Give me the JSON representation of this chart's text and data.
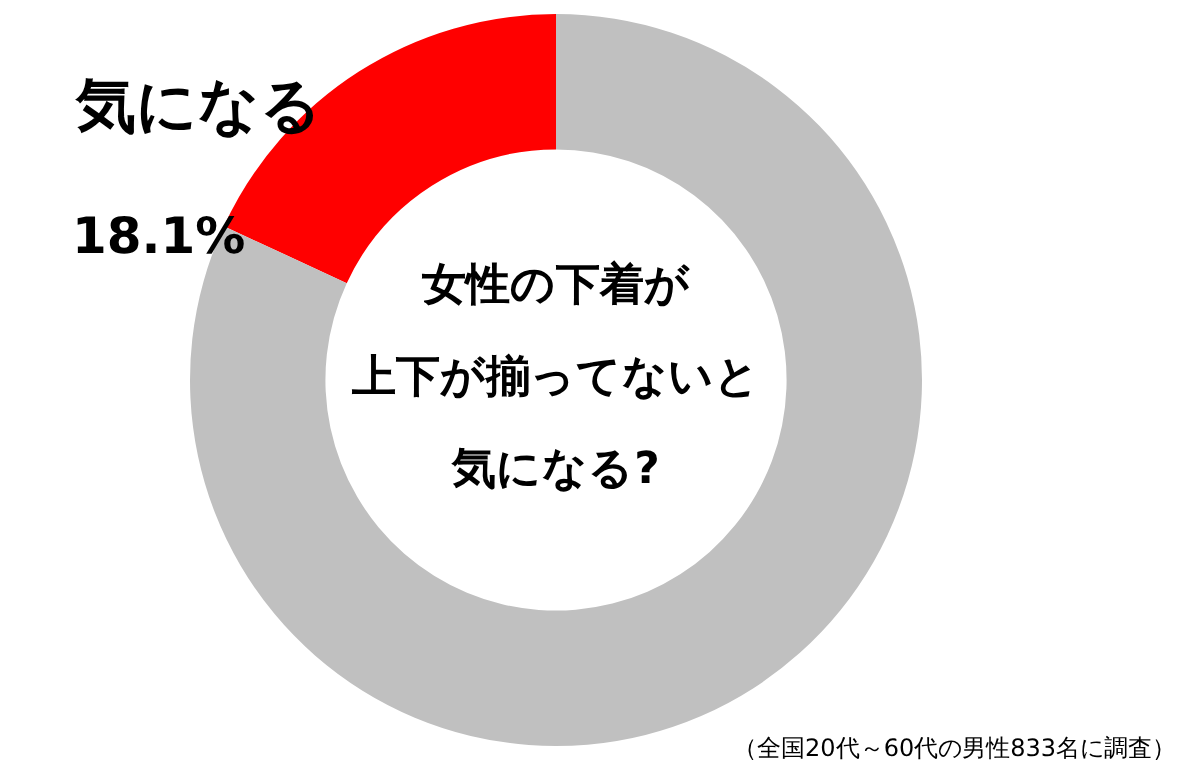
{
  "chart_data": {
    "type": "donut",
    "categories": [
      "気になる",
      null
    ],
    "values": [
      18.1,
      81.9
    ],
    "colors": [
      "#ff0000",
      "#c0c0c0"
    ],
    "value_labels": [
      "18.1%",
      null
    ],
    "legend": false,
    "annotations": [
      "女性の下着が",
      "上下が揃ってないと",
      "気になる?",
      "（全国20代～60代の男性833名に調査）"
    ]
  }
}
